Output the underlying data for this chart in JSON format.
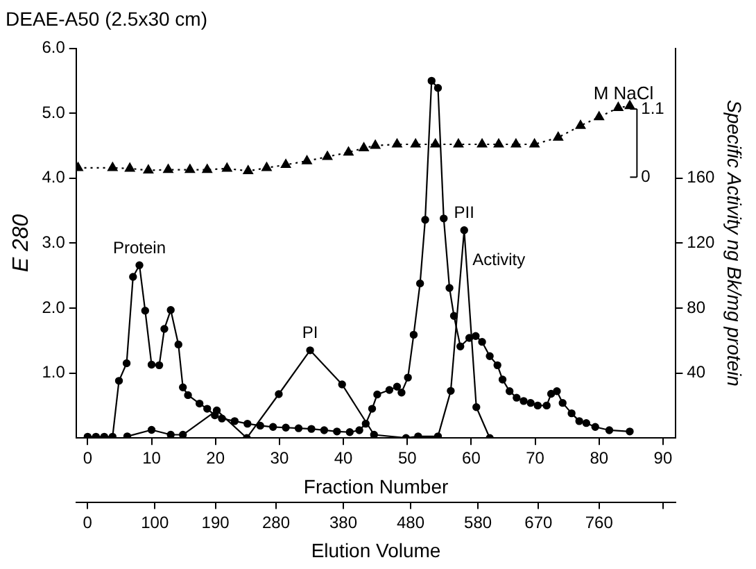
{
  "chart_data": {
    "type": "line",
    "title": "DEAE-A50 (2.5x30 cm)",
    "xlabel": "Fraction Number",
    "x2label": "Elution Volume",
    "ylabel": "E 280",
    "y2label": "Specific Activity ng Bk/mg protein",
    "y3label": "M NaCl",
    "xlim": [
      -1.8,
      92
    ],
    "xticks": [
      0,
      10,
      20,
      30,
      40,
      50,
      60,
      70,
      80,
      90
    ],
    "x2lim": [
      -17,
      874
    ],
    "x2ticks": [
      0,
      100,
      190,
      280,
      380,
      480,
      580,
      670,
      760,
      {
        "value": 855,
        "label": null
      }
    ],
    "ylim": [
      0,
      6
    ],
    "yticks": [
      {
        "value": 1,
        "label": "1.0"
      },
      {
        "value": 2,
        "label": "2.0"
      },
      {
        "value": 3,
        "label": "3.0"
      },
      {
        "value": 4,
        "label": "4.0"
      },
      {
        "value": 5,
        "label": "5.0"
      },
      {
        "value": 6,
        "label": "6.0"
      }
    ],
    "y2lim": [
      0,
      240
    ],
    "y2ticks": [
      40,
      80,
      120,
      160
    ],
    "y3lim": [
      -4.21,
      2.08
    ],
    "y3ticks": [
      0,
      1.1
    ],
    "grid": false,
    "legend": false,
    "annotations": [
      {
        "text": "Protein",
        "x": 8.1,
        "y": 2.66
      },
      {
        "text": "PI",
        "x": 34.8,
        "y": 1.35
      },
      {
        "text": "PII",
        "x": 58.9,
        "y": 3.2
      }
    ],
    "series": [
      {
        "type": "line",
        "marker": "circle",
        "line_style": "solid",
        "color": "#000000",
        "x": [
          0,
          1.3,
          2.6,
          3.9,
          4.9,
          6.1,
          7.1,
          8.1,
          9.0,
          10.0,
          11.2,
          12.0,
          13.0,
          14.2,
          14.9,
          15.7,
          17.5,
          18.7,
          19.9,
          21,
          23,
          25,
          27,
          29,
          31,
          33,
          35,
          37,
          39,
          41,
          42.5,
          43.5,
          44.5,
          45.3,
          47.2,
          48.4,
          49.1,
          50.1,
          51.0,
          52.0,
          52.8,
          53.8,
          54.8,
          55.7,
          56.6,
          57.3,
          58.3,
          59.7,
          60.7,
          61.7,
          62.9,
          64.1,
          64.9,
          66.0,
          67.1,
          68.2,
          69.3,
          70.4,
          71.8,
          72.5,
          73.4,
          74.3,
          75.7,
          76.9,
          78,
          79.4,
          81.6,
          84.8
        ],
        "values": [
          0.02,
          0.02,
          0.02,
          0.02,
          0.88,
          1.15,
          2.48,
          2.66,
          1.96,
          1.13,
          1.12,
          1.68,
          1.97,
          1.44,
          0.78,
          0.66,
          0.53,
          0.45,
          0.35,
          0.3,
          0.26,
          0.22,
          0.19,
          0.17,
          0.16,
          0.15,
          0.14,
          0.12,
          0.1,
          0.09,
          0.12,
          0.22,
          0.45,
          0.67,
          0.74,
          0.79,
          0.7,
          0.93,
          1.59,
          2.38,
          3.36,
          5.5,
          5.39,
          3.38,
          2.31,
          1.88,
          1.41,
          1.54,
          1.57,
          1.48,
          1.26,
          1.12,
          0.9,
          0.72,
          0.62,
          0.57,
          0.54,
          0.5,
          0.5,
          0.68,
          0.72,
          0.54,
          0.38,
          0.26,
          0.23,
          0.17,
          0.12,
          0.1
        ]
      },
      {
        "type": "line",
        "name": "Activity",
        "axis": "y2",
        "marker": "circle",
        "line_style": "solid",
        "color": "#000000",
        "x": [
          6.2,
          10,
          13,
          14.9,
          20.2,
          24.9,
          29.9,
          34.8,
          39.8,
          44.8,
          49.8,
          51.7,
          54.8,
          56.8,
          58.9,
          60.8,
          62.9
        ],
        "values": [
          1,
          5,
          2,
          2,
          17,
          0,
          27,
          54,
          33,
          2,
          0,
          1,
          1,
          29,
          128,
          19,
          0
        ]
      },
      {
        "type": "line",
        "axis": "y3",
        "marker": "triangle",
        "line_style": "dotted",
        "color": "#000000",
        "x": [
          -1.5,
          3.9,
          6.6,
          9.5,
          12.6,
          16.0,
          18.7,
          21.8,
          25.1,
          28.0,
          31.0,
          34.3,
          37.5,
          40.8,
          43.2,
          45.0,
          48.4,
          51.3,
          54.4,
          58.0,
          61.7,
          64.3,
          67.0,
          69.9,
          73.6,
          77.1,
          80.0,
          83.0,
          84.8
        ],
        "values": [
          0.15,
          0.15,
          0.14,
          0.11,
          0.12,
          0.12,
          0.12,
          0.14,
          0.1,
          0.15,
          0.2,
          0.26,
          0.33,
          0.4,
          0.47,
          0.51,
          0.53,
          0.53,
          0.53,
          0.53,
          0.53,
          0.53,
          0.53,
          0.53,
          0.64,
          0.83,
          0.97,
          1.12,
          1.15
        ]
      }
    ]
  }
}
